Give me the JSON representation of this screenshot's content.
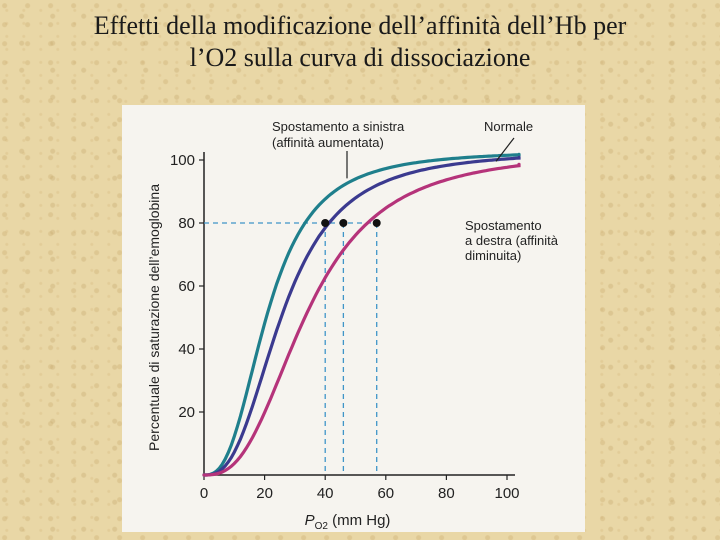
{
  "slide": {
    "title_line1": "Effetti della modificazione dell’affinità dell’Hb per",
    "title_line2": "l’O2 sulla curva di dissociazione"
  },
  "chart_data": {
    "type": "line",
    "ylabel": "Percentuale di saturazione dell’emoglobina",
    "xlabel_main": "P",
    "xlabel_sub": "O2",
    "xlabel_unit": "(mm Hg)",
    "xlim": [
      0,
      100
    ],
    "ylim": [
      0,
      100
    ],
    "x_ticks": [
      "0",
      "20",
      "40",
      "60",
      "80",
      "100"
    ],
    "y_ticks": [
      "20",
      "40",
      "60",
      "80",
      "100"
    ],
    "series": [
      {
        "name": "Spostamento a sinistra (affinità aumentata)",
        "label_line1": "Spostamento a sinistra",
        "label_line2": "(affinità aumentata)",
        "color": "#1f7f8c",
        "p50": 21,
        "n": 2.7,
        "marker": [
          40,
          80
        ]
      },
      {
        "name": "Normale",
        "label_line1": "Normale",
        "color": "#3b3a8f",
        "p50": 26,
        "n": 2.7,
        "marker": [
          46,
          80
        ]
      },
      {
        "name": "Spostamento a destra (affinità diminuita)",
        "label_line1": "Spostamento",
        "label_line2": "a destra (affinità",
        "label_line3": "diminuita)",
        "color": "#b5337a",
        "p50": 34,
        "n": 2.7,
        "marker": [
          57,
          80
        ]
      }
    ],
    "reference_line_y": 80,
    "colors": {
      "axis": "#222222",
      "dashed": "#3f95c8",
      "marker": "#111111"
    }
  }
}
